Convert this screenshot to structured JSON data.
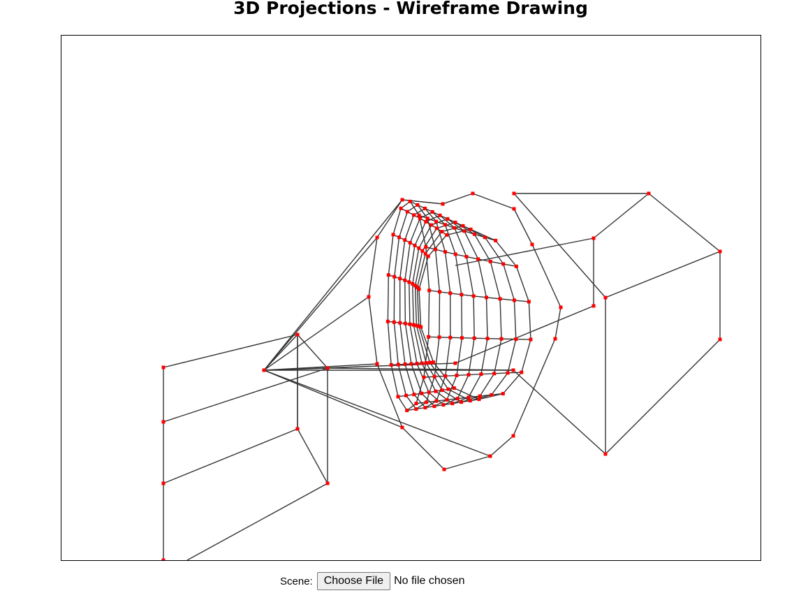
{
  "page": {
    "title": "3D Projections - Wireframe Drawing"
  },
  "colors": {
    "edge": "#333333",
    "vertex": "#ff0000",
    "canvas_border": "#000000"
  },
  "controls": {
    "scene_label": "Scene:",
    "file_button_label": "Choose File",
    "file_status": "No file chosen"
  },
  "scene": {
    "description_icon": "wireframe-canvas",
    "objects": [
      "cylinder",
      "pyramid",
      "box",
      "box-frame",
      "prism"
    ]
  }
}
